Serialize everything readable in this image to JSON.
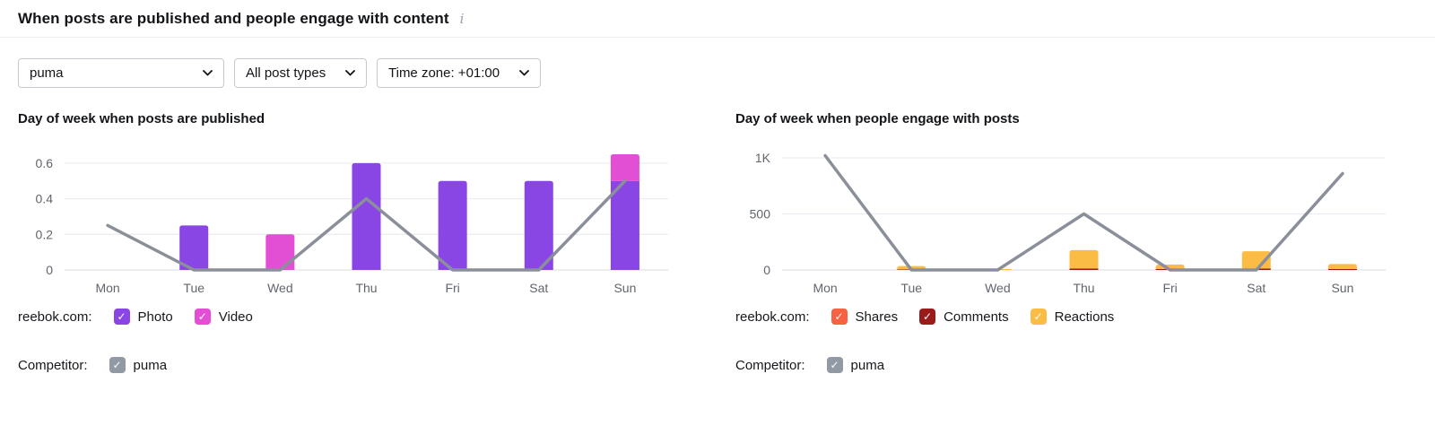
{
  "header": {
    "title": "When posts are published and people engage with content",
    "info_icon": "i"
  },
  "filters": {
    "profile": {
      "value": "puma"
    },
    "post_type": {
      "value": "All post types"
    },
    "timezone": {
      "value": "Time zone: +01:00"
    }
  },
  "panels": [
    {
      "owner_label": "reebok.com:",
      "competitor_label": "Competitor:",
      "competitor_name": "puma"
    },
    {
      "owner_label": "reebok.com:",
      "competitor_label": "Competitor:",
      "competitor_name": "puma"
    }
  ],
  "colors": {
    "photo": "#8A46E4",
    "video": "#E24FD4",
    "shares": "#F76342",
    "comments": "#9B1A1A",
    "reactions": "#FBBC45",
    "competitor_line": "#8A8F9A",
    "competitor_checkbox": "#9199A4",
    "grid": "#ECEDF1",
    "zero_line": "#E0E2E7"
  },
  "chart_data": [
    {
      "type": "bar",
      "subtype": "stacked-bars-with-line-overlay",
      "title": "Day of week when posts are published",
      "categories": [
        "Mon",
        "Tue",
        "Wed",
        "Thu",
        "Fri",
        "Sat",
        "Sun"
      ],
      "series": [
        {
          "name": "Photo",
          "type": "bar",
          "color": "#8A46E4",
          "values": [
            0,
            0.25,
            0,
            0.6,
            0.5,
            0.5,
            0.5
          ]
        },
        {
          "name": "Video",
          "type": "bar",
          "color": "#E24FD4",
          "values": [
            0,
            0,
            0.2,
            0,
            0,
            0,
            0.15
          ]
        },
        {
          "name": "puma",
          "type": "line",
          "color": "#8A8F9A",
          "values": [
            0.25,
            0,
            0,
            0.4,
            0,
            0,
            0.5
          ]
        }
      ],
      "stacked": true,
      "yticks": [
        0,
        0.2,
        0.4,
        0.6
      ],
      "ytick_labels": [
        "0",
        "0.2",
        "0.4",
        "0.6"
      ],
      "ylim": [
        0,
        0.68
      ],
      "grid": true,
      "legend_position": "below"
    },
    {
      "type": "bar",
      "subtype": "stacked-bars-with-line-overlay",
      "title": "Day of week when people engage with posts",
      "categories": [
        "Mon",
        "Tue",
        "Wed",
        "Thu",
        "Fri",
        "Sat",
        "Sun"
      ],
      "series": [
        {
          "name": "Shares",
          "type": "bar",
          "color": "#F76342",
          "values": [
            0,
            0,
            0,
            0,
            0,
            0,
            0
          ]
        },
        {
          "name": "Comments",
          "type": "bar",
          "color": "#9B1A1A",
          "values": [
            0,
            5,
            0,
            12,
            8,
            12,
            8
          ]
        },
        {
          "name": "Reactions",
          "type": "bar",
          "color": "#FBBC45",
          "values": [
            0,
            30,
            8,
            165,
            40,
            155,
            45
          ]
        },
        {
          "name": "puma",
          "type": "line",
          "color": "#8A8F9A",
          "values": [
            1020,
            0,
            0,
            500,
            0,
            0,
            860
          ]
        }
      ],
      "stacked": true,
      "yticks": [
        0,
        500,
        1000
      ],
      "ytick_labels": [
        "0",
        "500",
        "1K"
      ],
      "ylim": [
        0,
        1080
      ],
      "grid": true,
      "legend_position": "below"
    }
  ]
}
